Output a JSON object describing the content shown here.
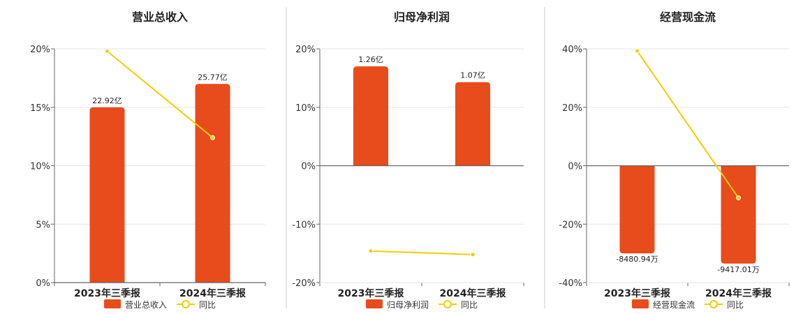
{
  "chart_data": [
    {
      "type": "bar",
      "title": "营业总收入",
      "categories": [
        "2023年三季报",
        "2024年三季报"
      ],
      "series": [
        {
          "name": "营业总收入",
          "kind": "bar",
          "values": [
            15.0,
            17.0
          ],
          "labels": [
            "22.92亿",
            "25.77亿"
          ]
        },
        {
          "name": "同比",
          "kind": "line",
          "values": [
            19.8,
            12.4
          ]
        }
      ],
      "yticks": [
        "0%",
        "5%",
        "10%",
        "15%",
        "20%"
      ],
      "ylim": [
        0,
        20
      ],
      "grid": true,
      "legend": "bottom"
    },
    {
      "type": "bar",
      "title": "归母净利润",
      "categories": [
        "2023年三季报",
        "2024年三季报"
      ],
      "series": [
        {
          "name": "归母净利润",
          "kind": "bar",
          "values": [
            17.0,
            14.3
          ],
          "labels": [
            "1.26亿",
            "1.07亿"
          ]
        },
        {
          "name": "同比",
          "kind": "line",
          "values": [
            -14.6,
            -15.2
          ]
        }
      ],
      "yticks": [
        "-20%",
        "-10%",
        "0%",
        "10%",
        "20%"
      ],
      "ylim": [
        -20,
        20
      ],
      "grid": true,
      "legend": "bottom"
    },
    {
      "type": "bar",
      "title": "经营现金流",
      "categories": [
        "2023年三季报",
        "2024年三季报"
      ],
      "series": [
        {
          "name": "经营现金流",
          "kind": "bar",
          "values": [
            -30.0,
            -33.5
          ],
          "labels": [
            "-8480.94万",
            "-9417.01万"
          ]
        },
        {
          "name": "同比",
          "kind": "line",
          "values": [
            39.3,
            -11.0
          ]
        }
      ],
      "yticks": [
        "-40%",
        "-20%",
        "0%",
        "20%",
        "40%"
      ],
      "ylim": [
        -40,
        40
      ],
      "grid": true,
      "legend": "bottom"
    }
  ],
  "colors": {
    "bar": "#e84b1c",
    "line": "#f2cf00",
    "grid": "#e6e6e6",
    "axis": "#666666",
    "divider": "#cccccc"
  }
}
